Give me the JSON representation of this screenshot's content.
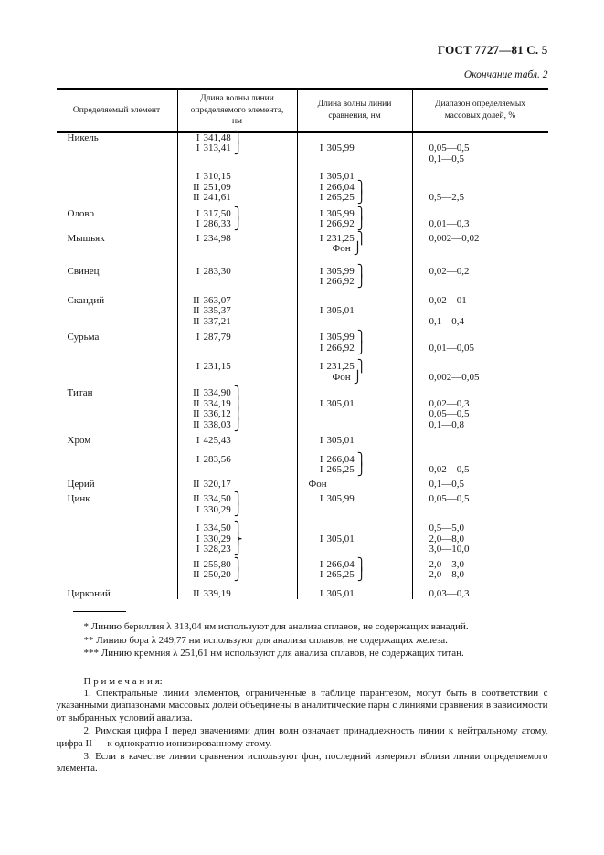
{
  "page": {
    "doc_code": "ГОСТ 7727—81 С. 5",
    "continuation": "Окончание табл.  2"
  },
  "table": {
    "headers": [
      "Определяемый элемент",
      "Длина волны линии определяемого элемента, нм",
      "Длина волны линии сравнения, нм",
      "Диапазон определяемых массовых долей, %"
    ],
    "lines": [
      {
        "el": "Никель",
        "w": "I 341,48",
        "wb": "⎫"
      },
      {
        "w": "I 313,41",
        "wb": "⎭",
        "c": "I 305,99",
        "r": "0,05—0,5"
      },
      {
        "r": "0,1—0,5"
      },
      {
        "sp": 8
      },
      {
        "w": "I 310,15",
        "c": "I 305,01"
      },
      {
        "w": "II 251,09",
        "c": "I 266,04",
        "cb": "⎫"
      },
      {
        "w": "II 241,61",
        "c": "I 265,25",
        "cb": "⎭",
        "r": "0,5—2,5"
      },
      {
        "sp": 6
      },
      {
        "el": "Олово",
        "w": "I 317,50",
        "wb": "⎫",
        "c": "I 305,99",
        "cb": "⎫"
      },
      {
        "w": "I 286,33",
        "wb": "⎭",
        "c": "I 266,92",
        "cb": "⎭",
        "r": "0,01—0,3"
      },
      {
        "sp": 4
      },
      {
        "el": "Мышьяк",
        "w": "I 234,98",
        "c": "I 231,25",
        "cb": "⎫",
        "r": "0,002—0,02"
      },
      {
        "c": "Фон",
        "cb": "⎭"
      },
      {
        "sp": 13
      },
      {
        "el": "Свинец",
        "w": "I 283,30",
        "c": "I 305,99",
        "cb": "⎫",
        "r": "0,02—0,2"
      },
      {
        "c": "I 266,92",
        "cb": "⎭"
      },
      {
        "sp": 9
      },
      {
        "el": "Скандий",
        "w": "II 363,07",
        "r": "0,02—01"
      },
      {
        "w": "II 335,37",
        "c": "I 305,01"
      },
      {
        "w": "II 337,21",
        "r": "0,1—0,4"
      },
      {
        "sp": 6
      },
      {
        "el": "Сурьма",
        "w": "I 287,79",
        "c": "I 305,99",
        "cb": "⎫"
      },
      {
        "c": "I 266,92",
        "cb": "⎭",
        "r": "0,01—0,05"
      },
      {
        "sp": 9
      },
      {
        "w": "I 231,15",
        "c": "I 231,25",
        "cb": "⎫"
      },
      {
        "c": "Фон",
        "cb": "⎭",
        "r": "0,002—0,05"
      },
      {
        "sp": 6
      },
      {
        "el": "Титан",
        "w": "II 334,90",
        "wb": "⎫"
      },
      {
        "w": "II 334,19",
        "wb": "⎪",
        "c": "I 305,01",
        "r": "0,02—0,3"
      },
      {
        "w": "II 336,12",
        "wb": "⎪",
        "r": "0,05—0,5"
      },
      {
        "w": "II 338,03",
        "wb": "⎭",
        "r": "0,1—0,8"
      },
      {
        "sp": 6
      },
      {
        "el": "Хром",
        "w": "I 425,43",
        "c": "I 305,01"
      },
      {
        "sp": 9
      },
      {
        "w": "I 283,56",
        "c": "I 266,04",
        "cb": "⎫"
      },
      {
        "c": "I 265,25",
        "cb": "⎭",
        "r": "0,02—0,5"
      },
      {
        "sp": 4
      },
      {
        "el": "Церий",
        "w": "II 320,17",
        "c": "Фон",
        "r": "0,1—0,5"
      },
      {
        "sp": 5
      },
      {
        "el": "Цинк",
        "w": "II 334,50",
        "wb": "⎫",
        "c": "I 305,99",
        "r": "0,05—0,5"
      },
      {
        "w": "I 330,29",
        "wb": "⎭"
      },
      {
        "sp": 9
      },
      {
        "w": "I 334,50",
        "wb": "⎫",
        "r": "0,5—5,0"
      },
      {
        "w": "I 330,29",
        "wb": "⎬",
        "c": "I 305,01",
        "r": "2,0—8,0"
      },
      {
        "w": "I 328,23",
        "wb": "⎭",
        "r": "3,0—10,0"
      },
      {
        "sp": 5
      },
      {
        "w": "II 255,80",
        "wb": "⎫",
        "c": "I 266,04",
        "cb": "⎫",
        "r": "2,0—3,0"
      },
      {
        "w": "II 250,20",
        "wb": "⎭",
        "c": "I 265,25",
        "cb": "⎭",
        "r": "2,0—8,0"
      },
      {
        "sp": 9
      },
      {
        "el": "Цирконий",
        "w": "II 339,19",
        "c": "I 305,01",
        "r": "0,03—0,3"
      }
    ]
  },
  "footnotes": [
    {
      "marker": "*",
      "text": "Линию бериллия λ 313,04 нм используют для анализа сплавов, не содержащих ванадий."
    },
    {
      "marker": "**",
      "text": "Линию бора λ 249,77 нм используют для анализа сплавов, не содержащих железа."
    },
    {
      "marker": "***",
      "text": "Линию кремния λ 251,61 нм используют для анализа сплавов, не содержащих титан."
    }
  ],
  "notes": {
    "title": "П р и м е ч а н и я:",
    "items": [
      "1.  Спектральные линии элементов, ограниченные в таблице парантезом, могут быть в соответствии с указанными диапазонами массовых долей объединены в аналитические пары с линиями сравнения в зависимости от выбранных условий анализа.",
      "2.  Римская цифра I перед значениями длин волн означает принадлежность линии к нейтральному атому, цифра II — к однократно ионизированному атому.",
      "3.  Если в качестве линии сравнения используют фон, последний измеряют вблизи линии определяемого элемента."
    ]
  }
}
